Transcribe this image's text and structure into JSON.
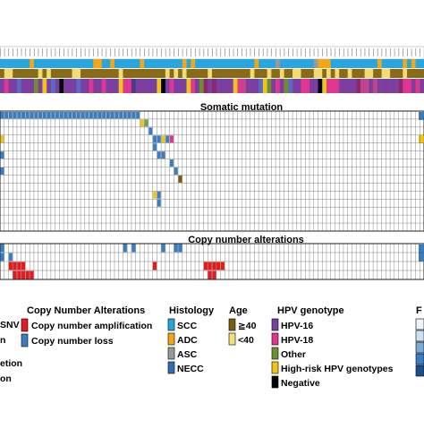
{
  "chart_data": {
    "type": "heatmap",
    "sections": {
      "somatic_title": "Somatic mutation",
      "cna_title": "Copy number alterations"
    },
    "columns": 100,
    "somatic_rows": 15,
    "cna_rows": 4,
    "legend_cut_labels": [
      "SNV",
      "n",
      "etion",
      "on"
    ],
    "legends": {
      "cna": {
        "title": "Copy Number Alterations",
        "items": [
          {
            "label": "Copy number amplification",
            "color": "#e41a1c"
          },
          {
            "label": "Copy number loss",
            "color": "#3a7ec2"
          }
        ]
      },
      "histology": {
        "title": "Histology",
        "items": [
          {
            "label": "SCC",
            "color": "#29a6de"
          },
          {
            "label": "ADC",
            "color": "#f2a71b"
          },
          {
            "label": "ASC",
            "color": "#9a9a9a"
          },
          {
            "label": "NECC",
            "color": "#2e6fb5"
          }
        ]
      },
      "age": {
        "title": "Age",
        "items": [
          {
            "label": "≧40",
            "color": "#7a5c10"
          },
          {
            "label": "<40",
            "color": "#f5e07a"
          }
        ]
      },
      "hpv": {
        "title": "HPV genotype",
        "items": [
          {
            "label": "HPV-16",
            "color": "#7b3fa0"
          },
          {
            "label": "HPV-18",
            "color": "#e0368f"
          },
          {
            "label": "Other",
            "color": "#6f8f2f"
          },
          {
            "label": "High-risk HPV genotypes",
            "color": "#f2c318"
          },
          {
            "label": "Negative",
            "color": "#000000"
          }
        ]
      },
      "right_cut_title": "F"
    },
    "annotation_colors": {
      "histology": "#29a6de",
      "age_dark": "#8a6a14",
      "age_light": "#f3dc6b"
    }
  }
}
